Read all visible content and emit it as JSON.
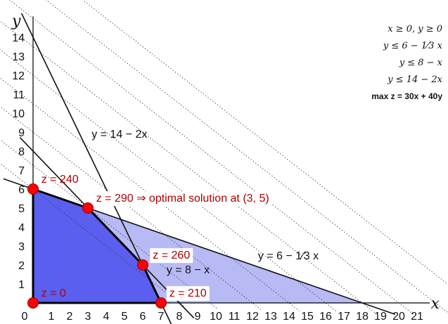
{
  "chart_data": {
    "type": "line",
    "title": "",
    "xlabel": "x",
    "ylabel": "y",
    "xlim": [
      0,
      21
    ],
    "ylim": [
      0,
      15
    ],
    "x_ticks": [
      "0",
      "1",
      "2",
      "3",
      "4",
      "5",
      "6",
      "7",
      "8",
      "9",
      "10",
      "11",
      "12",
      "13",
      "14",
      "15",
      "16",
      "17",
      "18",
      "19",
      "20",
      "21"
    ],
    "y_ticks": [
      "1",
      "2",
      "3",
      "4",
      "5",
      "6",
      "7",
      "8",
      "9",
      "10",
      "11",
      "12",
      "13",
      "14"
    ],
    "constraint_lines": [
      {
        "label": "y = 14 − 2x",
        "points": [
          [
            0,
            14
          ],
          [
            7,
            0
          ]
        ]
      },
      {
        "label": "y = 8 − x",
        "points": [
          [
            0,
            8
          ],
          [
            8,
            0
          ]
        ]
      },
      {
        "label": "y = 6 − 1⁄3 x",
        "points": [
          [
            0,
            6
          ],
          [
            18,
            0
          ]
        ]
      }
    ],
    "feasible_region": [
      [
        0,
        0
      ],
      [
        0,
        6
      ],
      [
        3,
        5
      ],
      [
        6,
        2
      ],
      [
        7,
        0
      ]
    ],
    "outer_region": [
      [
        0,
        6
      ],
      [
        18,
        0
      ],
      [
        7,
        0
      ],
      [
        6,
        2
      ],
      [
        3,
        5
      ]
    ],
    "vertices": [
      {
        "x": 0,
        "y": 0,
        "label": "z = 0"
      },
      {
        "x": 0,
        "y": 6,
        "label": "z = 240"
      },
      {
        "x": 3,
        "y": 5,
        "label": "z = 290  ⇒  optimal solution at (3, 5)"
      },
      {
        "x": 6,
        "y": 2,
        "label": "z = 260"
      },
      {
        "x": 7,
        "y": 0,
        "label": "z = 210"
      }
    ],
    "iso_profit_levels": [
      240,
      290,
      360,
      420,
      480,
      540,
      600,
      660,
      720
    ],
    "grid": false,
    "colors": {
      "feasible": "#5a5ff0",
      "outer": "#b8baf5",
      "vertex": "#ff0000",
      "label": "#b00000",
      "line": "#111111"
    }
  },
  "annotations": {
    "constraints": [
      "x ≥ 0,  y ≥ 0",
      "y ≤ 6 − 1⁄3  x",
      "y ≤ 8 − x",
      "y ≤ 14 − 2x"
    ],
    "objective": "max  z = 30x + 40y"
  }
}
